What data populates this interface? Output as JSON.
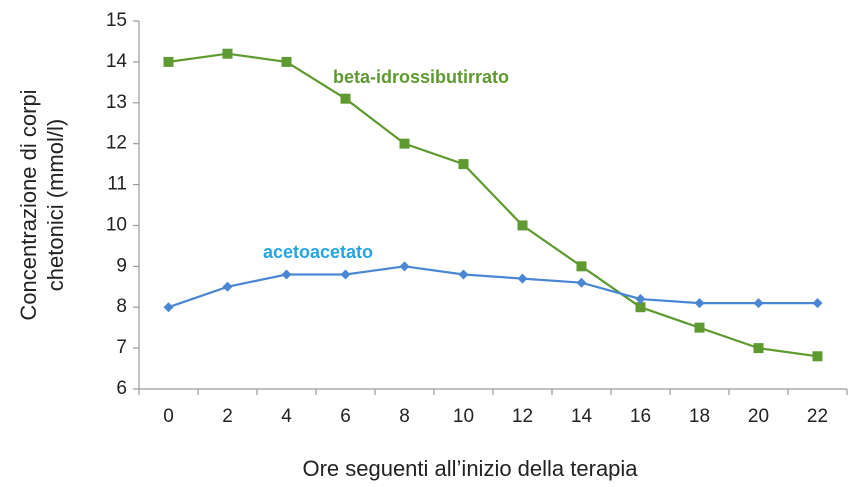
{
  "chart_data": {
    "type": "line",
    "ylabel": [
      "Concentrazione di corpi",
      "chetonici (mmol/l)"
    ],
    "xlabel": "Ore seguenti all’inizio della terapia",
    "categories": [
      0,
      2,
      4,
      6,
      8,
      10,
      12,
      14,
      16,
      18,
      20,
      22
    ],
    "series": [
      {
        "name": "beta-idrossibutirrato",
        "color": "#5e9a2f",
        "marker": "square",
        "values": [
          14,
          14.2,
          14,
          13.1,
          12,
          11.5,
          10,
          9,
          8,
          7.5,
          7,
          6.8
        ]
      },
      {
        "name": "acetoacetato",
        "color": "#4a86d4",
        "label_color": "#27a4e2",
        "marker": "diamond",
        "values": [
          8,
          8.5,
          8.8,
          8.8,
          9,
          8.8,
          8.7,
          8.6,
          8.2,
          8.1,
          8.1,
          8.1
        ]
      }
    ],
    "ylim": [
      6,
      15
    ],
    "yticks": [
      6,
      7,
      8,
      9,
      10,
      11,
      12,
      13,
      14,
      15
    ],
    "grid": false
  }
}
